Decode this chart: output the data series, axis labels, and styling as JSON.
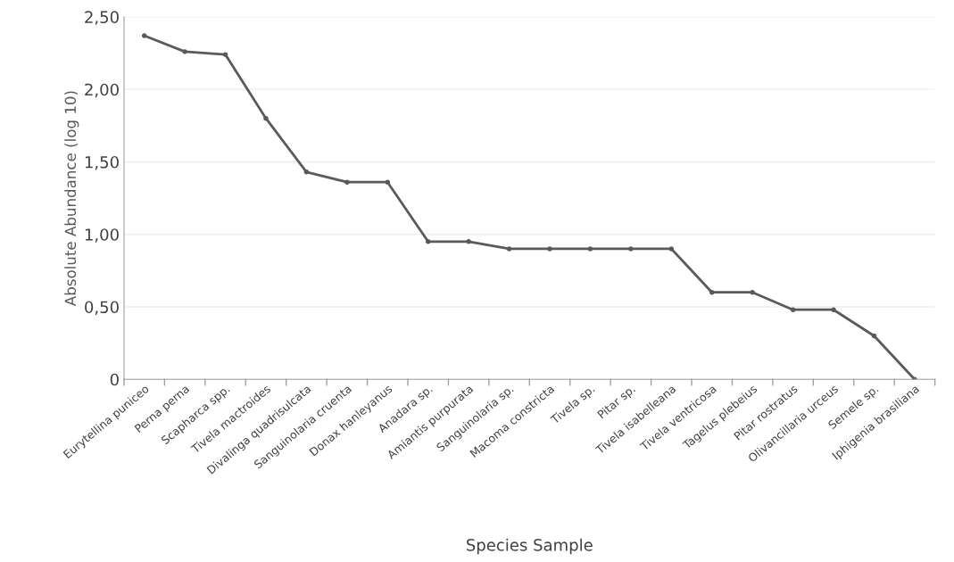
{
  "chart_data": {
    "type": "line",
    "xlabel": "Species Sample",
    "ylabel": "Absolute Abundance (log 10)",
    "categories": [
      "Eurytellina puniceo",
      "Perna perna",
      "Scapharca spp.",
      "Tivela mactroides",
      "Divalinga quadrisulcata",
      "Sanguinolaria cruenta",
      "Donax hanleyanus",
      "Anadara sp.",
      "Amiantis purpurata",
      "Sanguinolaria sp.",
      "Macoma constricta",
      "Tivela sp.",
      "Pitar sp.",
      "Tivela isabelleana",
      "Tivela ventricosa",
      "Tagelus plebeius",
      "Pitar rostratus",
      "Olivancillaria urceus",
      "Semele sp.",
      "Iphigenia brasiliana"
    ],
    "series": [
      {
        "color": "#5a5a5a",
        "values": [
          2.37,
          2.26,
          2.24,
          1.8,
          1.43,
          1.36,
          1.36,
          0.95,
          0.95,
          0.9,
          0.9,
          0.9,
          0.9,
          0.9,
          0.6,
          0.6,
          0.48,
          0.48,
          0.3,
          0.0
        ]
      }
    ],
    "ylim": [
      0,
      2.5
    ],
    "yticks": [
      0,
      {
        "value": 0.5,
        "label": "0,50"
      },
      {
        "value": 1.0,
        "label": "1,00"
      },
      {
        "value": 1.5,
        "label": "1,50"
      },
      {
        "value": 2.0,
        "label": "2,00"
      },
      {
        "value": 2.5,
        "label": "2,50"
      }
    ],
    "grid": "y",
    "marker": "circle",
    "line_style": "solid"
  }
}
